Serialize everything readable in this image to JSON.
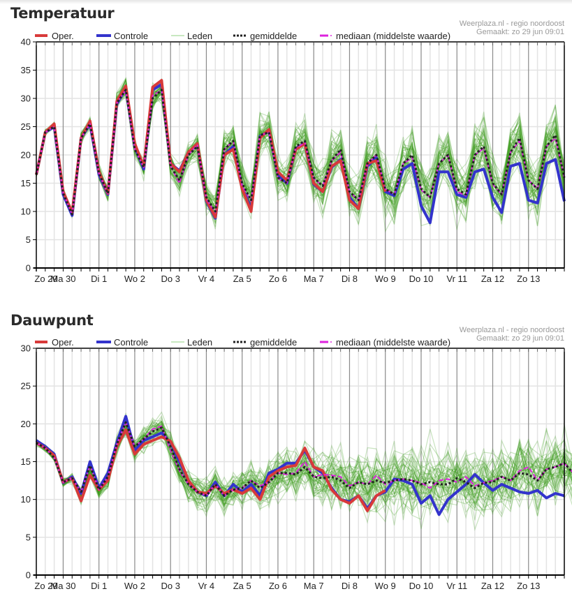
{
  "charts": [
    {
      "title": "Temperatuur",
      "source": "Weerplaza.nl - regio noordoost",
      "created": "Gemaakt: zo 29 jun 09:01"
    },
    {
      "title": "Dauwpunt",
      "source": "Weerplaza.nl - regio noordoost",
      "created": "Gemaakt: zo 29 jun 09:01"
    }
  ],
  "legend": {
    "oper": "Oper.",
    "controle": "Controle",
    "leden": "Leden",
    "gemiddelde": "gemiddelde",
    "mediaan": "mediaan (middelste waarde)"
  },
  "colors": {
    "oper": "#d83a3a",
    "controle": "#3333cc",
    "leden": "#3a9a1a",
    "gemiddelde": "#222222",
    "mediaan": "#dd22dd",
    "grid": "#e3e3e3",
    "day_divider": "#8a8a8a"
  },
  "chart_data": [
    {
      "type": "line",
      "title": "Temperatuur",
      "xlabel": "",
      "ylabel": "",
      "ylim": [
        0,
        40
      ],
      "yticks": [
        0,
        5,
        10,
        15,
        20,
        25,
        30,
        35,
        40
      ],
      "x_step_hours": 6,
      "x_start_offset_steps": -3,
      "categories": [
        "Zo 29",
        "Ma 30",
        "Di 1",
        "Wo 2",
        "Do 3",
        "Vr 4",
        "Za 5",
        "Zo 6",
        "Ma 7",
        "Di 8",
        "Wo 9",
        "Do 10",
        "Vr 11",
        "Za 12",
        "Zo 13"
      ],
      "grid": true,
      "legend_position": "top",
      "series": [
        {
          "name": "Oper.",
          "values": [
            16.5,
            24,
            25.5,
            13.5,
            9.8,
            23,
            26,
            17,
            13.2,
            29.5,
            32.2,
            22,
            18,
            32,
            33.2,
            18.5,
            17,
            20.5,
            22,
            12,
            9,
            20,
            21,
            14,
            10,
            23,
            24.5,
            17,
            15.5,
            21,
            22,
            15,
            13.5,
            18,
            19,
            12,
            10.5,
            18.5,
            19,
            13.5
          ]
        },
        {
          "name": "Controle",
          "values": [
            16.5,
            24,
            25,
            13,
            9.3,
            23,
            25.5,
            16.5,
            13,
            29,
            31.8,
            21.5,
            17.5,
            31.5,
            32.5,
            18.5,
            17.2,
            20.5,
            21.8,
            11.8,
            8.8,
            20,
            21.5,
            14.2,
            10.5,
            23.3,
            24.2,
            16.5,
            15,
            21.2,
            22,
            14.8,
            13.5,
            17.8,
            19.2,
            12.5,
            10.5,
            18,
            19.5,
            13.5,
            12.8,
            17.5,
            18.5,
            11,
            8,
            17,
            17,
            13,
            12.5,
            17,
            17.5,
            12.5,
            9.8,
            18,
            18.5,
            12,
            11.5,
            18.5,
            19.2,
            11.8
          ]
        },
        {
          "name": "gemiddelde",
          "values": [
            16.5,
            24,
            25,
            13.2,
            9.5,
            23,
            25.5,
            16.8,
            13.2,
            29.2,
            31.5,
            21,
            17.8,
            30,
            31.5,
            18,
            15.5,
            20,
            21.5,
            12.5,
            10,
            21,
            22.5,
            15,
            12,
            23.5,
            24,
            16,
            15,
            21.5,
            22.5,
            16,
            14.5,
            19,
            21,
            13.5,
            12,
            18.5,
            20,
            14,
            13,
            18.5,
            20,
            14,
            12.5,
            18.5,
            20,
            14,
            13,
            20,
            21.5,
            15,
            13,
            20.5,
            23,
            15.5,
            14,
            21.5,
            23.5,
            16
          ]
        },
        {
          "name": "mediaan",
          "values": [
            16.5,
            24,
            25,
            13.2,
            9.5,
            23,
            25.5,
            16.8,
            13.2,
            29.2,
            31.5,
            21,
            17.8,
            30.5,
            31.5,
            18,
            15,
            20,
            21.8,
            12.2,
            9.8,
            21,
            22.5,
            14.5,
            11.8,
            23.5,
            24,
            15.8,
            15,
            21.2,
            22.2,
            15.8,
            14.5,
            19,
            20.5,
            13.5,
            12,
            18.5,
            20,
            14,
            13,
            18.5,
            19.5,
            13.8,
            12.5,
            18.5,
            20,
            13.5,
            12.8,
            20,
            21.2,
            14.8,
            13,
            20.5,
            22.5,
            15.5,
            14,
            21.5,
            23,
            16
          ]
        }
      ],
      "ensemble_members": 50
    },
    {
      "type": "line",
      "title": "Dauwpunt",
      "xlabel": "",
      "ylabel": "",
      "ylim": [
        0,
        30
      ],
      "yticks": [
        0,
        5,
        10,
        15,
        20,
        25,
        30
      ],
      "x_step_hours": 6,
      "x_start_offset_steps": -3,
      "categories": [
        "Zo 29",
        "Ma 30",
        "Di 1",
        "Wo 2",
        "Do 3",
        "Vr 4",
        "Za 5",
        "Zo 6",
        "Ma 7",
        "Di 8",
        "Wo 9",
        "Do 10",
        "Vr 11",
        "Za 12",
        "Zo 13"
      ],
      "grid": true,
      "legend_position": "top",
      "series": [
        {
          "name": "Oper.",
          "values": [
            17.5,
            16.8,
            15.8,
            12.3,
            12.8,
            9.8,
            13.2,
            11.3,
            12.5,
            17,
            19.2,
            16,
            17.3,
            17.8,
            18.3,
            17.7,
            15.5,
            12.5,
            11,
            10.8,
            11.8,
            10.8,
            11.3,
            10.8,
            11.5,
            10,
            13,
            13.8,
            14.3,
            14.5,
            16.8,
            14.3,
            13.8,
            11.3,
            10,
            9.5,
            10.5,
            8.5,
            10.5,
            11.2
          ]
        },
        {
          "name": "Controle",
          "values": [
            17.8,
            17,
            16,
            12.2,
            13,
            10.8,
            15,
            11.5,
            13.5,
            17.5,
            21,
            16.5,
            17.8,
            18.3,
            18.8,
            17.5,
            15,
            12.5,
            11,
            10.5,
            12.3,
            10.5,
            12,
            11,
            12,
            10.5,
            13.5,
            14,
            14.8,
            14.8,
            16.5,
            14.3,
            13.5,
            11.5,
            10,
            9.7,
            10.5,
            8.8,
            10.5,
            11,
            12.7,
            12.5,
            12,
            9.5,
            10.5,
            8,
            10,
            11,
            12,
            13.3,
            12.2,
            11.2,
            12,
            11.5,
            11,
            10.8,
            11.2,
            10.2,
            10.8,
            10.5
          ]
        },
        {
          "name": "gemiddelde",
          "values": [
            17.5,
            16.8,
            15.5,
            12.3,
            12.8,
            11,
            14.5,
            11.3,
            13,
            17.3,
            20.2,
            17,
            18,
            19,
            19.5,
            17,
            14,
            12,
            11,
            10.5,
            12,
            10.5,
            11.3,
            11.5,
            12.5,
            11.5,
            12.3,
            13.5,
            13.5,
            13.3,
            14.3,
            13,
            12.8,
            13,
            12.5,
            11.5,
            12.3,
            12,
            12.5,
            12.2,
            12.5,
            12.7,
            12.5,
            12,
            12.3,
            12,
            12,
            12.8,
            12.3,
            11.5,
            12.2,
            12.3,
            13,
            12.5,
            13.5,
            13.3,
            12.5,
            14,
            14.3,
            14.8,
            13.5
          ]
        },
        {
          "name": "mediaan",
          "values": [
            17.5,
            16.8,
            15.5,
            12.3,
            12.8,
            11,
            14.5,
            11.3,
            13,
            17.3,
            20.2,
            17,
            18,
            19.3,
            19.7,
            16.5,
            13.8,
            12,
            11,
            10.5,
            12,
            10.5,
            11.3,
            11.5,
            12.5,
            11.8,
            12.3,
            13.5,
            13.3,
            13.5,
            15,
            13,
            13.3,
            13.2,
            13,
            11.8,
            12.3,
            12,
            13.2,
            12,
            12.5,
            12.7,
            12.5,
            12.2,
            11.5,
            12.5,
            12.7,
            12.3,
            13,
            11.8,
            12.2,
            12.5,
            13,
            12.5,
            13.8,
            14.3,
            12.5,
            14,
            14.3,
            14.8,
            13.5
          ]
        }
      ],
      "ensemble_members": 50
    }
  ]
}
